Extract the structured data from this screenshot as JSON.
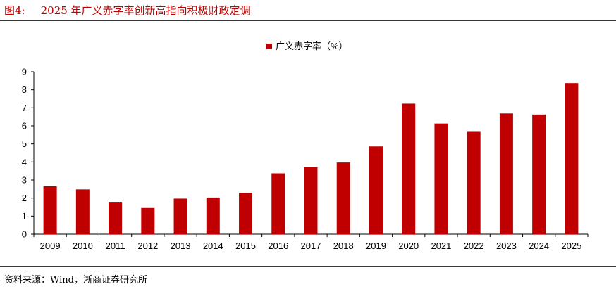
{
  "figure": {
    "label": "图4:",
    "title": "2025 年广义赤字率创新高指向积极财政定调",
    "source": "资料来源：Wind，浙商证券研究所"
  },
  "colors": {
    "accent": "#c00000",
    "bar": "#c00000",
    "axis": "#000000"
  },
  "chart_data": {
    "type": "bar",
    "categories": [
      "2009",
      "2010",
      "2011",
      "2012",
      "2013",
      "2014",
      "2015",
      "2016",
      "2017",
      "2018",
      "2019",
      "2020",
      "2021",
      "2022",
      "2023",
      "2024",
      "2025"
    ],
    "series": [
      {
        "name": "广义赤字率（%）",
        "values": [
          2.65,
          2.48,
          1.79,
          1.45,
          1.97,
          2.03,
          2.29,
          3.37,
          3.74,
          3.97,
          4.86,
          7.23,
          6.13,
          5.67,
          6.69,
          6.63,
          8.37
        ]
      }
    ],
    "yticks": [
      0,
      1,
      2,
      3,
      4,
      5,
      6,
      7,
      8,
      9
    ],
    "ylim": [
      0,
      9
    ],
    "legend_position": "top-center",
    "grid": false
  }
}
